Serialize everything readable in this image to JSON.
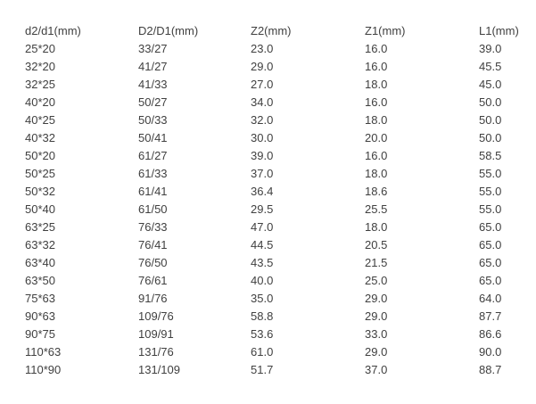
{
  "colors": {
    "text": "#404040",
    "background": "#ffffff"
  },
  "chart_data": {
    "type": "table",
    "title": "",
    "columns": [
      "d2/d1(mm)",
      "D2/D1(mm)",
      "Z2(mm)",
      "Z1(mm)",
      "L1(mm)"
    ],
    "rows": [
      [
        "25*20",
        "33/27",
        "23.0",
        "16.0",
        "39.0"
      ],
      [
        "32*20",
        "41/27",
        "29.0",
        "16.0",
        "45.5"
      ],
      [
        "32*25",
        "41/33",
        "27.0",
        "18.0",
        "45.0"
      ],
      [
        "40*20",
        "50/27",
        "34.0",
        "16.0",
        "50.0"
      ],
      [
        "40*25",
        "50/33",
        "32.0",
        "18.0",
        "50.0"
      ],
      [
        "40*32",
        "50/41",
        "30.0",
        "20.0",
        "50.0"
      ],
      [
        "50*20",
        "61/27",
        "39.0",
        "16.0",
        "58.5"
      ],
      [
        "50*25",
        "61/33",
        "37.0",
        "18.0",
        "55.0"
      ],
      [
        "50*32",
        "61/41",
        "36.4",
        "18.6",
        "55.0"
      ],
      [
        "50*40",
        "61/50",
        "29.5",
        "25.5",
        "55.0"
      ],
      [
        "63*25",
        "76/33",
        "47.0",
        "18.0",
        "65.0"
      ],
      [
        "63*32",
        "76/41",
        "44.5",
        "20.5",
        "65.0"
      ],
      [
        "63*40",
        "76/50",
        "43.5",
        "21.5",
        "65.0"
      ],
      [
        "63*50",
        "76/61",
        "40.0",
        "25.0",
        "65.0"
      ],
      [
        "75*63",
        "91/76",
        "35.0",
        "29.0",
        "64.0"
      ],
      [
        "90*63",
        "109/76",
        "58.8",
        "29.0",
        "87.7"
      ],
      [
        "90*75",
        "109/91",
        "53.6",
        "33.0",
        "86.6"
      ],
      [
        "110*63",
        "131/76",
        "61.0",
        "29.0",
        "90.0"
      ],
      [
        "110*90",
        "131/109",
        "51.7",
        "37.0",
        "88.7"
      ]
    ]
  }
}
